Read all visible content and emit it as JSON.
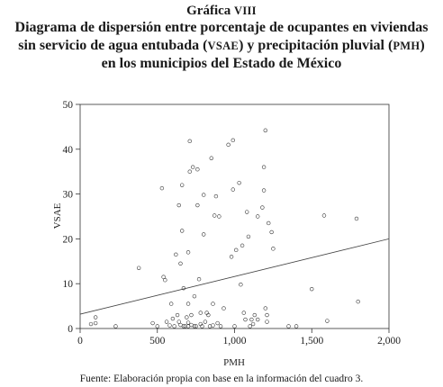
{
  "title": {
    "label": "Gráfica",
    "roman": "VIII",
    "line1": "Diagrama de dispersión entre porcentaje de ocupantes en viviendas",
    "line2_a": "sin servicio de agua entubada (",
    "line2_b": "VSAE",
    "line2_c": ") y precipitación pluvial (",
    "line2_d": "PMH",
    "line2_e": ")",
    "line3": "en los municipios del Estado de México"
  },
  "source": "Fuente: Elaboración propia con base en la información del cuadro 3.",
  "chart_data": {
    "type": "scatter",
    "xlabel": "PMH",
    "ylabel": "VSAE",
    "xlim": [
      0,
      2000
    ],
    "ylim": [
      0,
      50
    ],
    "xticks": [
      0,
      500,
      1000,
      1500,
      2000
    ],
    "xtick_labels": [
      "0",
      "500",
      "1,000",
      "1,500",
      "2,000"
    ],
    "yticks": [
      0,
      10,
      20,
      30,
      40,
      50
    ],
    "ytick_labels": [
      "0",
      "10",
      "20",
      "30",
      "40",
      "50"
    ],
    "grid": false,
    "trendline": {
      "x": [
        0,
        2000
      ],
      "y": [
        3.2,
        20.0
      ]
    },
    "points": [
      [
        70,
        1.0
      ],
      [
        100,
        2.5
      ],
      [
        100,
        1.2
      ],
      [
        230,
        0.5
      ],
      [
        380,
        13.5
      ],
      [
        470,
        1.2
      ],
      [
        500,
        0.5
      ],
      [
        530,
        31.3
      ],
      [
        540,
        11.5
      ],
      [
        550,
        10.8
      ],
      [
        560,
        1.5
      ],
      [
        580,
        0.7
      ],
      [
        590,
        5.5
      ],
      [
        600,
        2.2
      ],
      [
        610,
        0.5
      ],
      [
        620,
        16.5
      ],
      [
        630,
        3.0
      ],
      [
        640,
        27.5
      ],
      [
        640,
        1.5
      ],
      [
        650,
        14.5
      ],
      [
        650,
        0.8
      ],
      [
        660,
        21.8
      ],
      [
        660,
        32.0
      ],
      [
        670,
        9.0
      ],
      [
        670,
        0.5
      ],
      [
        680,
        0.5
      ],
      [
        690,
        2.5
      ],
      [
        700,
        1.3
      ],
      [
        700,
        5.5
      ],
      [
        700,
        17.0
      ],
      [
        700,
        0.5
      ],
      [
        710,
        35.0
      ],
      [
        710,
        41.8
      ],
      [
        720,
        3.0
      ],
      [
        720,
        0.8
      ],
      [
        730,
        36.0
      ],
      [
        740,
        7.2
      ],
      [
        740,
        0.5
      ],
      [
        750,
        0.5
      ],
      [
        760,
        35.5
      ],
      [
        760,
        27.5
      ],
      [
        770,
        11.0
      ],
      [
        780,
        3.5
      ],
      [
        780,
        1.0
      ],
      [
        790,
        0.5
      ],
      [
        800,
        21.0
      ],
      [
        800,
        29.8
      ],
      [
        810,
        1.5
      ],
      [
        820,
        3.5
      ],
      [
        830,
        3.0
      ],
      [
        840,
        0.5
      ],
      [
        850,
        38.0
      ],
      [
        860,
        5.5
      ],
      [
        860,
        0.7
      ],
      [
        870,
        25.2
      ],
      [
        880,
        29.5
      ],
      [
        890,
        1.2
      ],
      [
        900,
        25.0
      ],
      [
        910,
        0.5
      ],
      [
        930,
        4.5
      ],
      [
        960,
        41.0
      ],
      [
        980,
        16.0
      ],
      [
        990,
        42.0
      ],
      [
        990,
        31.0
      ],
      [
        1000,
        0.5
      ],
      [
        1010,
        17.5
      ],
      [
        1030,
        32.5
      ],
      [
        1040,
        9.8
      ],
      [
        1050,
        18.5
      ],
      [
        1060,
        3.5
      ],
      [
        1070,
        2.0
      ],
      [
        1080,
        26.0
      ],
      [
        1090,
        20.5
      ],
      [
        1100,
        0.5
      ],
      [
        1110,
        2.0
      ],
      [
        1120,
        1.0
      ],
      [
        1130,
        3.0
      ],
      [
        1150,
        2.0
      ],
      [
        1150,
        25.0
      ],
      [
        1180,
        27.0
      ],
      [
        1190,
        36.0
      ],
      [
        1190,
        30.8
      ],
      [
        1200,
        44.2
      ],
      [
        1200,
        4.5
      ],
      [
        1210,
        3.0
      ],
      [
        1210,
        1.5
      ],
      [
        1220,
        23.5
      ],
      [
        1240,
        21.5
      ],
      [
        1250,
        17.8
      ],
      [
        1350,
        0.5
      ],
      [
        1400,
        0.5
      ],
      [
        1500,
        8.8
      ],
      [
        1580,
        25.2
      ],
      [
        1600,
        1.7
      ],
      [
        1790,
        24.5
      ],
      [
        1800,
        6.0
      ]
    ]
  }
}
